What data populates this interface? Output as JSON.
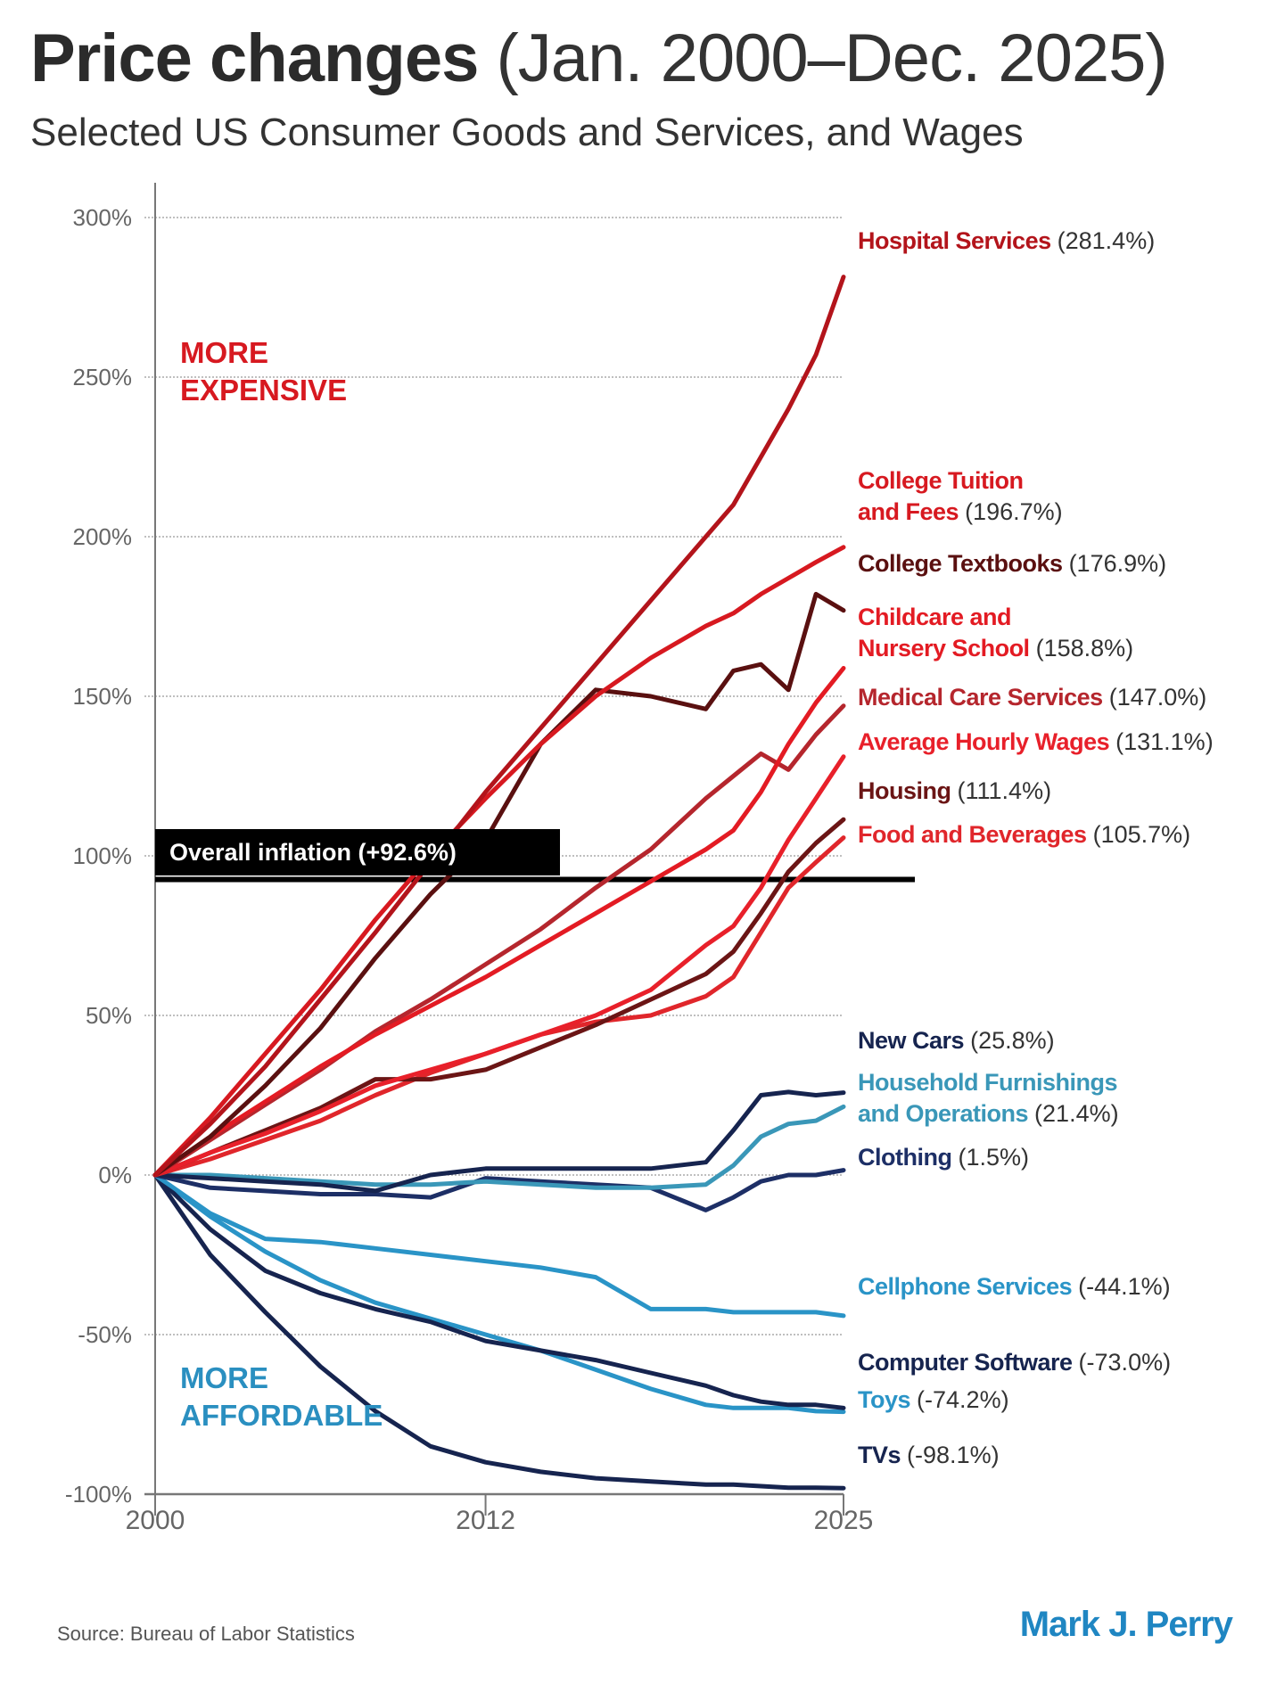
{
  "header": {
    "title_bold": "Price changes",
    "title_range": "(Jan. 2000–Dec. 2025)",
    "subtitle": "Selected US Consumer Goods and Services, and Wages"
  },
  "annotations": {
    "more_expensive": [
      "MORE",
      "EXPENSIVE"
    ],
    "more_affordable": [
      "MORE",
      "AFFORDABLE"
    ],
    "inflation": "Overall inflation (+92.6%)"
  },
  "footer": {
    "source": "Source:  Bureau of Labor Statistics",
    "brand": "Mark J. Perry"
  },
  "chart_data": {
    "type": "line",
    "title": "Price changes (Jan. 2000–Dec. 2025)",
    "subtitle": "Selected US Consumer Goods and Services, and Wages",
    "xlim": [
      2000,
      2025
    ],
    "ylim": [
      -100,
      300
    ],
    "x_ticks": [
      "2000",
      "2012",
      "2025"
    ],
    "y_ticks": [
      "300%",
      "250%",
      "200%",
      "150%",
      "100%",
      "50%",
      "0%",
      "-50%",
      "-100%"
    ],
    "y_tick_values": [
      300,
      250,
      200,
      150,
      100,
      50,
      0,
      -50,
      -100
    ],
    "grid": "horizontal dotted",
    "reference_line": {
      "name": "Overall inflation",
      "value": 92.6
    },
    "x": [
      2000,
      2002,
      2004,
      2006,
      2008,
      2010,
      2012,
      2014,
      2016,
      2018,
      2020,
      2021,
      2022,
      2023,
      2024,
      2025
    ],
    "series": [
      {
        "name": "Hospital Services",
        "line1": "Hospital Services",
        "value_label": "(281.4%)",
        "final": 281.4,
        "color": "#b3141b",
        "values": [
          0,
          16,
          34,
          55,
          76,
          98,
          120,
          140,
          160,
          180,
          200,
          210,
          225,
          240,
          257,
          281.4
        ]
      },
      {
        "name": "College Tuition and Fees",
        "line1": "College Tuition",
        "line2": "and Fees",
        "value_label": "(196.7%)",
        "final": 196.7,
        "color": "#d71920",
        "values": [
          0,
          18,
          38,
          58,
          80,
          100,
          118,
          135,
          150,
          162,
          172,
          176,
          182,
          187,
          192,
          196.7
        ]
      },
      {
        "name": "College Textbooks",
        "line1": "College Textbooks",
        "value_label": "(176.9%)",
        "final": 176.9,
        "color": "#5a1010",
        "values": [
          0,
          12,
          28,
          46,
          68,
          88,
          105,
          135,
          152,
          150,
          146,
          158,
          160,
          152,
          182,
          176.9
        ]
      },
      {
        "name": "Childcare and Nursery School",
        "line1": "Childcare and",
        "line2": "Nursery School",
        "value_label": "(158.8%)",
        "final": 158.8,
        "color": "#e31b23",
        "values": [
          0,
          12,
          23,
          34,
          44,
          53,
          62,
          72,
          82,
          92,
          102,
          108,
          120,
          135,
          148,
          158.8
        ]
      },
      {
        "name": "Medical Care Services",
        "line1": "Medical Care Services",
        "value_label": "(147.0%)",
        "final": 147.0,
        "color": "#b5262d",
        "values": [
          0,
          11,
          22,
          33,
          45,
          55,
          66,
          77,
          90,
          102,
          118,
          125,
          132,
          127,
          138,
          147.0
        ]
      },
      {
        "name": "Average Hourly Wages",
        "line1": "Average Hourly Wages",
        "value_label": "(131.1%)",
        "final": 131.1,
        "color": "#e8202a",
        "values": [
          0,
          7,
          13,
          20,
          28,
          33,
          38,
          44,
          50,
          58,
          72,
          78,
          90,
          105,
          118,
          131.1
        ]
      },
      {
        "name": "Housing",
        "line1": "Housing",
        "value_label": "(111.4%)",
        "final": 111.4,
        "color": "#6b1515",
        "values": [
          0,
          7,
          14,
          21,
          30,
          30,
          33,
          40,
          47,
          55,
          63,
          70,
          82,
          95,
          104,
          111.4
        ]
      },
      {
        "name": "Food and Beverages",
        "line1": "Food and Beverages",
        "value_label": "(105.7%)",
        "final": 105.7,
        "color": "#e0262b",
        "values": [
          0,
          5,
          11,
          17,
          25,
          32,
          38,
          44,
          48,
          50,
          56,
          62,
          76,
          90,
          98,
          105.7
        ]
      },
      {
        "name": "New Cars",
        "line1": "New Cars",
        "value_label": "(25.8%)",
        "final": 25.8,
        "color": "#16244f",
        "values": [
          0,
          -1,
          -2,
          -3,
          -5,
          0,
          2,
          2,
          2,
          2,
          4,
          14,
          25,
          26,
          25,
          25.8
        ]
      },
      {
        "name": "Household Furnishings and Operations",
        "line1": "Household Furnishings",
        "line2": "and Operations",
        "value_label": "(21.4%)",
        "final": 21.4,
        "color": "#3a97b8",
        "values": [
          0,
          0,
          -1,
          -2,
          -3,
          -3,
          -2,
          -3,
          -4,
          -4,
          -3,
          3,
          12,
          16,
          17,
          21.4
        ]
      },
      {
        "name": "Clothing",
        "line1": "Clothing",
        "value_label": "(1.5%)",
        "final": 1.5,
        "color": "#1d2f66",
        "values": [
          0,
          -4,
          -5,
          -6,
          -6,
          -7,
          -1,
          -2,
          -3,
          -4,
          -11,
          -7,
          -2,
          0,
          0,
          1.5
        ]
      },
      {
        "name": "Cellphone Services",
        "line1": "Cellphone Services",
        "value_label": "(-44.1%)",
        "final": -44.1,
        "color": "#2a94c7",
        "values": [
          0,
          -12,
          -20,
          -21,
          -23,
          -25,
          -27,
          -29,
          -32,
          -42,
          -42,
          -43,
          -43,
          -43,
          -43,
          -44.1
        ]
      },
      {
        "name": "Computer Software",
        "line1": "Computer Software",
        "value_label": "(-73.0%)",
        "final": -73.0,
        "color": "#16244f",
        "values": [
          0,
          -17,
          -30,
          -37,
          -42,
          -46,
          -52,
          -55,
          -58,
          -62,
          -66,
          -69,
          -71,
          -72,
          -72,
          -73.0
        ]
      },
      {
        "name": "Toys",
        "line1": "Toys",
        "value_label": "(-74.2%)",
        "final": -74.2,
        "color": "#2a94c7",
        "values": [
          0,
          -13,
          -24,
          -33,
          -40,
          -45,
          -50,
          -55,
          -61,
          -67,
          -72,
          -73,
          -73,
          -73,
          -74,
          -74.2
        ]
      },
      {
        "name": "TVs",
        "line1": "TVs",
        "value_label": "(-98.1%)",
        "final": -98.1,
        "color": "#16244f",
        "values": [
          0,
          -25,
          -43,
          -60,
          -74,
          -85,
          -90,
          -93,
          -95,
          -96,
          -97,
          -97,
          -97.5,
          -98,
          -98,
          -98.1
        ]
      }
    ]
  }
}
